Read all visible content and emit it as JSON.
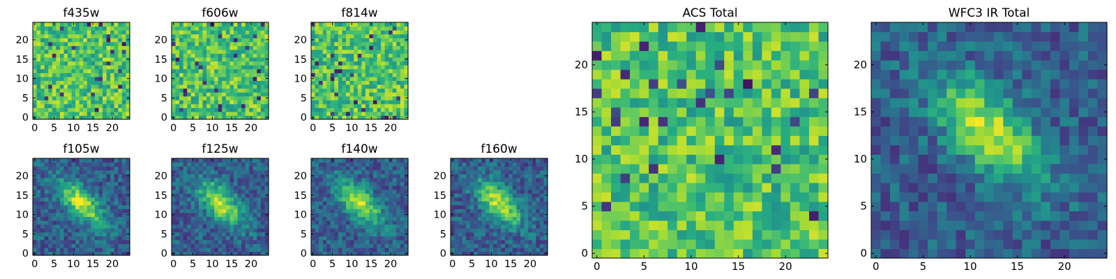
{
  "chart_data": [
    {
      "type": "heatmap",
      "title": "f435w",
      "grid_size": 25,
      "xticks": [
        "0",
        "5",
        "10",
        "15",
        "20"
      ],
      "yticks": [
        "0",
        "5",
        "10",
        "15",
        "20"
      ],
      "xlim": [
        0,
        25
      ],
      "ylim": [
        0,
        25
      ],
      "colormap": "viridis",
      "pattern": "noise"
    },
    {
      "type": "heatmap",
      "title": "f606w",
      "grid_size": 25,
      "xticks": [
        "0",
        "5",
        "10",
        "15",
        "20"
      ],
      "yticks": [
        "0",
        "5",
        "10",
        "15",
        "20"
      ],
      "xlim": [
        0,
        25
      ],
      "ylim": [
        0,
        25
      ],
      "colormap": "viridis",
      "pattern": "noise"
    },
    {
      "type": "heatmap",
      "title": "f814w",
      "grid_size": 25,
      "xticks": [
        "0",
        "5",
        "10",
        "15",
        "20"
      ],
      "yticks": [
        "0",
        "5",
        "10",
        "15",
        "20"
      ],
      "xlim": [
        0,
        25
      ],
      "ylim": [
        0,
        25
      ],
      "colormap": "viridis",
      "pattern": "noise"
    },
    {
      "type": "heatmap",
      "title": "f105w",
      "grid_size": 25,
      "xticks": [
        "0",
        "5",
        "10",
        "15",
        "20"
      ],
      "yticks": [
        "0",
        "5",
        "10",
        "15",
        "20"
      ],
      "xlim": [
        0,
        25
      ],
      "ylim": [
        0,
        25
      ],
      "colormap": "viridis",
      "pattern": "source"
    },
    {
      "type": "heatmap",
      "title": "f125w",
      "grid_size": 25,
      "xticks": [
        "0",
        "5",
        "10",
        "15",
        "20"
      ],
      "yticks": [
        "0",
        "5",
        "10",
        "15",
        "20"
      ],
      "xlim": [
        0,
        25
      ],
      "ylim": [
        0,
        25
      ],
      "colormap": "viridis",
      "pattern": "source"
    },
    {
      "type": "heatmap",
      "title": "f140w",
      "grid_size": 25,
      "xticks": [
        "0",
        "5",
        "10",
        "15",
        "20"
      ],
      "yticks": [
        "0",
        "5",
        "10",
        "15",
        "20"
      ],
      "xlim": [
        0,
        25
      ],
      "ylim": [
        0,
        25
      ],
      "colormap": "viridis",
      "pattern": "source"
    },
    {
      "type": "heatmap",
      "title": "f160w",
      "grid_size": 25,
      "xticks": [
        "0",
        "5",
        "10",
        "15",
        "20"
      ],
      "yticks": [
        "0",
        "5",
        "10",
        "15",
        "20"
      ],
      "xlim": [
        0,
        25
      ],
      "ylim": [
        0,
        25
      ],
      "colormap": "viridis",
      "pattern": "source"
    },
    {
      "type": "heatmap",
      "title": "ACS Total",
      "grid_size": 25,
      "xticks": [
        "0",
        "5",
        "10",
        "15",
        "20"
      ],
      "yticks": [
        "0",
        "5",
        "10",
        "15",
        "20"
      ],
      "xlim": [
        0,
        25
      ],
      "ylim": [
        0,
        25
      ],
      "colormap": "viridis",
      "pattern": "noise"
    },
    {
      "type": "heatmap",
      "title": "WFC3 IR Total",
      "grid_size": 25,
      "xticks": [
        "0",
        "5",
        "10",
        "15",
        "20"
      ],
      "yticks": [
        "0",
        "5",
        "10",
        "15",
        "20"
      ],
      "xlim": [
        0,
        25
      ],
      "ylim": [
        0,
        25
      ],
      "colormap": "viridis",
      "pattern": "source"
    }
  ]
}
